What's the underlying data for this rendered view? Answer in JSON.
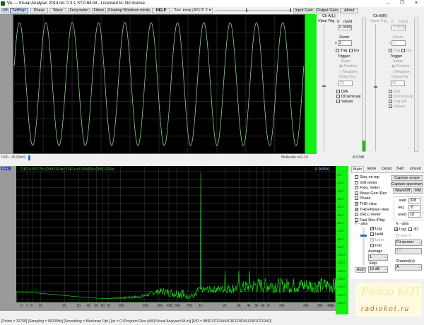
{
  "window": {
    "title": "VA --- Visual Analyser 2014 rel. 0.3.1 STD 64 bit - Licensed to: No license",
    "minimize": "–",
    "maximize": "❐",
    "close": "✕"
  },
  "toolbar": {
    "off": "Off",
    "settings": "Settings",
    "phase": "Phase",
    "wave": "Wave",
    "freq_meter": "Freq.meter",
    "filters": "Filters",
    "floating": "Floating Windows mode",
    "help": "HELP",
    "device": "Лин. вход (ASUS X",
    "input_gain": "Input Gain",
    "output_gain": "Output Gain",
    "about": "About"
  },
  "scope": {
    "time_range": "0.00 - 36.92mS",
    "fullscale": "5fullscale =41.19",
    "level_db": "-8.67dB",
    "cycles": 11,
    "trace_color": "#8fd08f"
  },
  "chA": {
    "title": "Ch A(L)",
    "vpos": "Vpos Trig",
    "value_label": "0",
    "unit": "ms/d",
    "value": "0.0000",
    "zoom_label": "Zoom",
    "zoom_x": "x",
    "zoom": "2",
    "trig": "Trig",
    "inv": "Inv",
    "trigger": "Trigger",
    "slope": "Slope",
    "positive": "Positive",
    "negative": "Negative",
    "delay_label": "DelayTrig",
    "delay": "25",
    "da": "D/A",
    "dc": "DCremoval",
    "values": "Values"
  },
  "chB": {
    "title": "Ch B(R)",
    "vpos": "Vpos Trig",
    "value_label": "0",
    "unit": "ms/d",
    "value": "3.0500",
    "zoom_label": "Zoom",
    "zoom_x": "x",
    "zoom": "1",
    "trig": "Trig",
    "inv": "Inv",
    "trigger": "Trigger",
    "slope": "Slope",
    "positive": "Positive",
    "negative": "Negative",
    "delay_label": "DelayTrig",
    "delay": "25",
    "da": "D/A",
    "dc": "DCremoval",
    "trig_left": "Trig left",
    "values": "Values"
  },
  "spectrum": {
    "corner": "80Hz",
    "thd_text": "THD 0.0077% (999.02Hz) THD+n 0.0549% (999.02Hz)",
    "readout": "0.00000",
    "db_ticks": [
      "0.0",
      "-10.0",
      "-20.0",
      "-30.0",
      "-40.0",
      "-50.0",
      "-60.0",
      "-70.0",
      "-80.0",
      "-90.0",
      "-100.0",
      "-110.0",
      "-120.0",
      "-130.0",
      "-140.0",
      "-150.0",
      "-160.0"
    ],
    "freq_ticks": [
      "6",
      "7",
      "8",
      "10",
      "20",
      "30",
      "40",
      "50",
      "60",
      "70",
      "100",
      "200",
      "300",
      "400",
      "500",
      "700",
      "1k",
      "2k",
      "3k",
      "4k",
      "5k",
      "6k",
      "7k",
      "10k",
      "20k",
      "30k",
      "40k"
    ],
    "hz": "Hz",
    "peak_freq_hz": 1000,
    "trace_color": "#13f013"
  },
  "tabs": [
    "Main",
    "More",
    "Cepst",
    "THD",
    "Uncert"
  ],
  "main": {
    "options": [
      {
        "label": "Stay on top",
        "checked": false
      },
      {
        "label": "Volt meter",
        "checked": false
      },
      {
        "label": "Freq. meter",
        "checked": false
      },
      {
        "label": "Wave Gen./Rec",
        "checked": false
      },
      {
        "label": "Phase",
        "checked": false
      },
      {
        "label": "THD view",
        "checked": true
      },
      {
        "label": "THD+Noise view",
        "checked": true
      },
      {
        "label": "ZRLC meter",
        "checked": false
      },
      {
        "label": "Fast Rec./Play",
        "checked": false
      }
    ],
    "capture_scope": "Capture scope",
    "capture_spectrum": "Capture spectrum",
    "waveoff": "WaveOff",
    "info": "Info",
    "wait_label": "wait",
    "wait": "328",
    "req_label": "req.",
    "req": "-5",
    "used_label": "used",
    "used": "16",
    "yaxis": "Y - axis",
    "y_log": "Log",
    "y_hold": "Hold",
    "y_lines": "Lines",
    "y_info": "Info",
    "average_label": "Average",
    "average": "1",
    "step_label": "Step",
    "step": "10 dB",
    "auto": "Auto",
    "xaxis": "X - axis",
    "x_log": "Log",
    "x_3d": "3D",
    "true_x": "true X",
    "fit": "Fit screen",
    "ratio": "1/1",
    "channels_label": "Channel(s)",
    "channel": "A"
  },
  "logo": {
    "text1": "Радио КОТ",
    "text2": "radiokot.ru"
  },
  "status": "[Points = 32768]  [Sampling = 96000Hz]  [Smoothing = Blackman Opt.]  [ini = C:\\Program Files (x86)\\Visual Analyser\\VA.ini]  [UID = 8B9F47D14A94C8F1F8D4511581CF19AD]"
}
